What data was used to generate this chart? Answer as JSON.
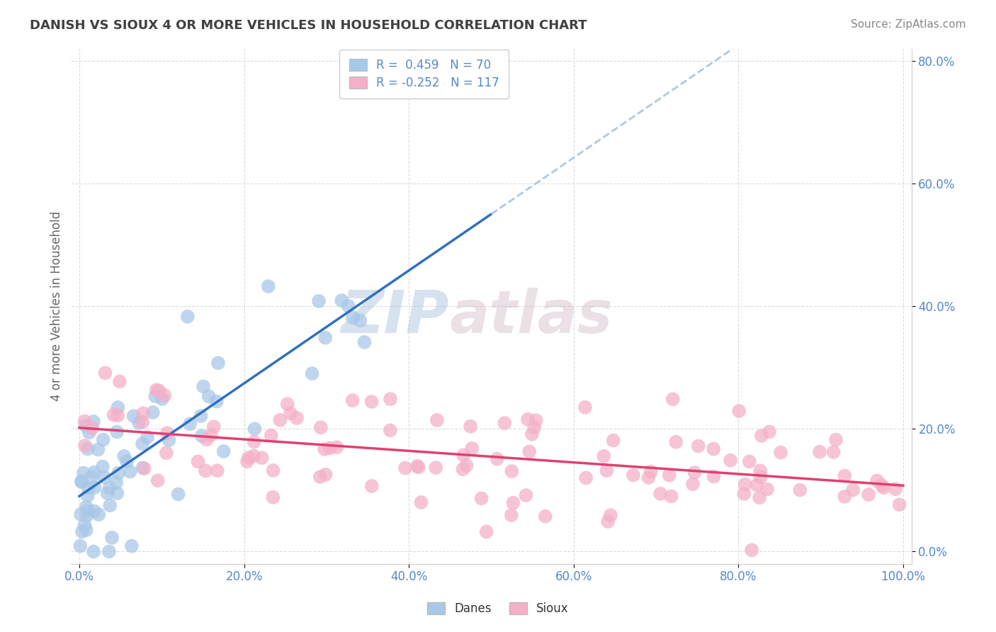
{
  "title": "DANISH VS SIOUX 4 OR MORE VEHICLES IN HOUSEHOLD CORRELATION CHART",
  "source": "Source: ZipAtlas.com",
  "ylabel": "4 or more Vehicles in Household",
  "legend_danes": "Danes",
  "legend_sioux": "Sioux",
  "danes_R": 0.459,
  "danes_N": 70,
  "sioux_R": -0.252,
  "sioux_N": 117,
  "danes_color": "#a8c8e8",
  "sioux_color": "#f4b0c8",
  "danes_line_color": "#3070c0",
  "sioux_line_color": "#e04070",
  "dashed_line_color": "#b0c8e0",
  "watermark_color": "#ccd8e8",
  "grid_color": "#d8d8d8",
  "background_color": "#ffffff",
  "title_color": "#404040",
  "axis_label_color": "#5588cc",
  "tick_label_color": "#5588cc",
  "ylabel_color": "#666666",
  "source_color": "#888888"
}
